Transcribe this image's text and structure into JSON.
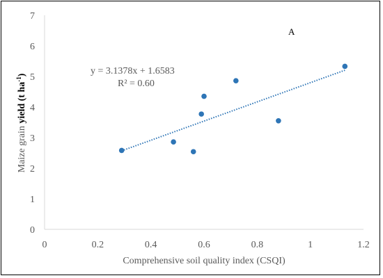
{
  "chart_data": {
    "type": "scatter",
    "panel_label": "A",
    "xlabel": "Comprehensive soil quality index (CSQI)",
    "ylabel_parts": [
      "Maize grain ",
      "yield",
      " (t ha",
      "-1",
      ")"
    ],
    "xlim": [
      0,
      1.2
    ],
    "ylim": [
      0,
      7
    ],
    "x_ticks": [
      "0",
      "0.2",
      "0.4",
      "0.6",
      "0.8",
      "1",
      "1.2"
    ],
    "y_ticks": [
      "0",
      "1",
      "2",
      "3",
      "4",
      "5",
      "6",
      "7"
    ],
    "points": [
      {
        "x": 0.29,
        "y": 2.58
      },
      {
        "x": 0.485,
        "y": 2.86
      },
      {
        "x": 0.56,
        "y": 2.54
      },
      {
        "x": 0.59,
        "y": 3.77
      },
      {
        "x": 0.6,
        "y": 4.35
      },
      {
        "x": 0.72,
        "y": 4.86
      },
      {
        "x": 0.88,
        "y": 3.55
      },
      {
        "x": 1.13,
        "y": 5.33
      }
    ],
    "trendline": {
      "slope": 3.1378,
      "intercept": 1.6583,
      "x_range": [
        0.29,
        1.13
      ]
    },
    "equation": "y = 3.1378x + 1.6583",
    "r_squared": "R² = 0.60",
    "colors": {
      "marker": "#2e75b6",
      "trendline": "#2e75b6",
      "text": "#595959",
      "axis": "#d9d9d9"
    },
    "grid": false,
    "legend": "none"
  }
}
